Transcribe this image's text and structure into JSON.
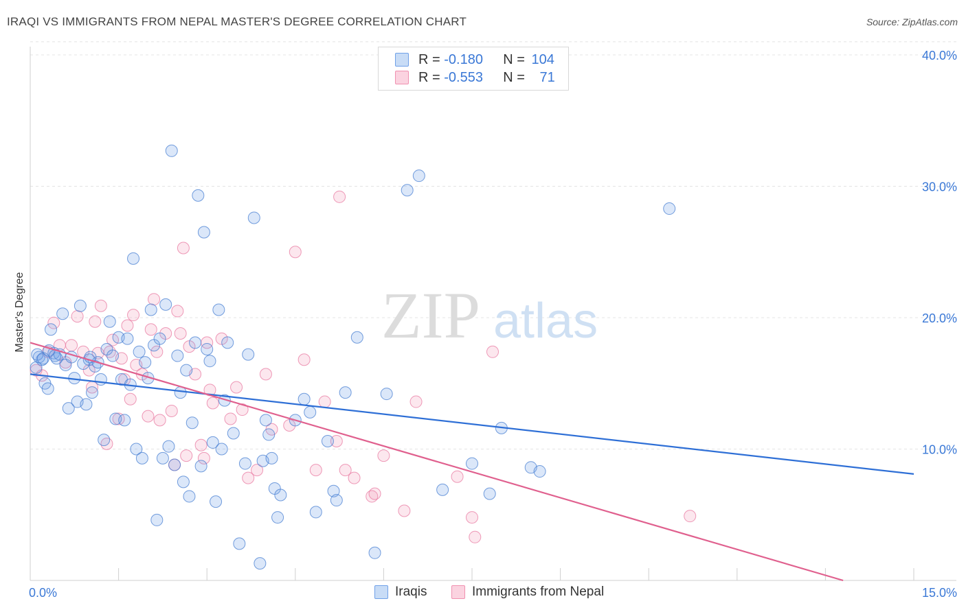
{
  "title": "IRAQI VS IMMIGRANTS FROM NEPAL MASTER'S DEGREE CORRELATION CHART",
  "source": "Source: ZipAtlas.com",
  "watermark": {
    "zip": "ZIP",
    "atlas": "atlas"
  },
  "legend": {
    "rows": [
      {
        "r_label": "R =",
        "r_value": "-0.180",
        "n_label": "N =",
        "n_value": "104",
        "color": "#6fa0e8"
      },
      {
        "r_label": "R =",
        "r_value": "-0.553",
        "n_label": "N =",
        "n_value": "71",
        "color": "#f090b0"
      }
    ]
  },
  "bottom_legend": [
    "Iraqis",
    "Immigrants from Nepal"
  ],
  "colors": {
    "blue": "#6fa0e8",
    "blue_line": "#2e6fd6",
    "pink": "#f090b0",
    "pink_line": "#e0608e",
    "tick_text": "#3a78d6"
  },
  "chart_data": {
    "type": "scatter",
    "xlabel": "",
    "ylabel": "Master's Degree",
    "xlim": [
      0,
      15
    ],
    "ylim": [
      0,
      41
    ],
    "x_tick_labels": [
      "0.0%",
      "15.0%"
    ],
    "y_ticks": [
      10,
      20,
      30,
      40
    ],
    "y_tick_labels": [
      "10.0%",
      "20.0%",
      "30.0%",
      "40.0%"
    ],
    "grid": true,
    "series": [
      {
        "name": "Iraqis",
        "color": "#6fa0e8",
        "trend": {
          "x": [
            0,
            15
          ],
          "y": [
            15.7,
            8.1
          ]
        },
        "points": [
          [
            0.1,
            16.2
          ],
          [
            0.15,
            17.0
          ],
          [
            0.2,
            16.8
          ],
          [
            0.25,
            15.0
          ],
          [
            0.3,
            14.6
          ],
          [
            0.35,
            19.1
          ],
          [
            0.4,
            17.3
          ],
          [
            0.45,
            16.9
          ],
          [
            0.55,
            20.3
          ],
          [
            0.5,
            17.2
          ],
          [
            0.6,
            16.4
          ],
          [
            0.7,
            17.0
          ],
          [
            0.65,
            13.1
          ],
          [
            0.75,
            15.4
          ],
          [
            0.8,
            13.6
          ],
          [
            0.85,
            20.9
          ],
          [
            0.9,
            16.5
          ],
          [
            0.95,
            13.4
          ],
          [
            1.0,
            16.8
          ],
          [
            1.05,
            14.3
          ],
          [
            1.1,
            16.3
          ],
          [
            1.15,
            16.6
          ],
          [
            1.2,
            15.3
          ],
          [
            1.25,
            10.7
          ],
          [
            1.3,
            17.6
          ],
          [
            1.35,
            19.7
          ],
          [
            1.4,
            17.1
          ],
          [
            1.45,
            12.3
          ],
          [
            1.5,
            18.5
          ],
          [
            1.55,
            15.3
          ],
          [
            1.6,
            12.2
          ],
          [
            1.65,
            18.4
          ],
          [
            1.7,
            14.9
          ],
          [
            1.75,
            24.5
          ],
          [
            1.8,
            10.0
          ],
          [
            1.85,
            17.4
          ],
          [
            1.9,
            9.3
          ],
          [
            1.95,
            16.6
          ],
          [
            2.0,
            15.4
          ],
          [
            2.05,
            20.6
          ],
          [
            2.1,
            17.9
          ],
          [
            2.15,
            4.6
          ],
          [
            2.2,
            18.4
          ],
          [
            2.25,
            9.3
          ],
          [
            2.3,
            21.0
          ],
          [
            2.35,
            10.2
          ],
          [
            2.4,
            32.7
          ],
          [
            2.45,
            8.8
          ],
          [
            2.5,
            17.1
          ],
          [
            2.55,
            14.3
          ],
          [
            2.6,
            7.5
          ],
          [
            2.65,
            16.0
          ],
          [
            2.7,
            6.4
          ],
          [
            2.75,
            12.0
          ],
          [
            2.8,
            18.1
          ],
          [
            2.85,
            29.3
          ],
          [
            2.9,
            8.7
          ],
          [
            2.95,
            26.5
          ],
          [
            3.0,
            17.6
          ],
          [
            3.05,
            16.7
          ],
          [
            3.1,
            10.5
          ],
          [
            3.15,
            6.0
          ],
          [
            3.2,
            20.6
          ],
          [
            3.25,
            10.0
          ],
          [
            3.3,
            13.7
          ],
          [
            3.35,
            18.1
          ],
          [
            3.45,
            11.2
          ],
          [
            3.55,
            2.8
          ],
          [
            3.65,
            8.9
          ],
          [
            3.7,
            17.2
          ],
          [
            3.8,
            27.6
          ],
          [
            3.9,
            1.3
          ],
          [
            3.95,
            9.1
          ],
          [
            4.0,
            12.2
          ],
          [
            4.05,
            11.1
          ],
          [
            4.1,
            9.3
          ],
          [
            4.15,
            7.0
          ],
          [
            4.2,
            4.8
          ],
          [
            4.25,
            6.5
          ],
          [
            4.5,
            12.2
          ],
          [
            4.65,
            13.8
          ],
          [
            4.75,
            12.8
          ],
          [
            4.85,
            5.2
          ],
          [
            5.05,
            10.6
          ],
          [
            5.15,
            6.8
          ],
          [
            5.2,
            6.1
          ],
          [
            5.35,
            14.3
          ],
          [
            5.55,
            18.5
          ],
          [
            5.85,
            2.1
          ],
          [
            6.05,
            14.2
          ],
          [
            6.4,
            29.7
          ],
          [
            6.6,
            30.8
          ],
          [
            7.0,
            6.9
          ],
          [
            7.5,
            8.9
          ],
          [
            7.8,
            6.6
          ],
          [
            8.0,
            11.6
          ],
          [
            8.5,
            8.6
          ],
          [
            8.65,
            8.3
          ],
          [
            10.85,
            28.3
          ],
          [
            0.12,
            17.2
          ],
          [
            0.22,
            16.9
          ],
          [
            0.32,
            17.5
          ],
          [
            0.42,
            17.1
          ],
          [
            1.02,
            17.0
          ]
        ]
      },
      {
        "name": "Immigrants from Nepal",
        "color": "#f090b0",
        "trend": {
          "x": [
            0,
            13.8
          ],
          "y": [
            18.1,
            0
          ]
        },
        "points": [
          [
            0.1,
            16.0
          ],
          [
            0.2,
            15.6
          ],
          [
            0.3,
            17.4
          ],
          [
            0.4,
            19.6
          ],
          [
            0.5,
            17.9
          ],
          [
            0.6,
            16.6
          ],
          [
            0.7,
            17.9
          ],
          [
            0.8,
            20.1
          ],
          [
            0.9,
            17.4
          ],
          [
            1.0,
            16.0
          ],
          [
            1.05,
            14.7
          ],
          [
            1.1,
            19.7
          ],
          [
            1.15,
            17.3
          ],
          [
            1.2,
            20.9
          ],
          [
            1.3,
            10.4
          ],
          [
            1.35,
            17.4
          ],
          [
            1.4,
            18.3
          ],
          [
            1.5,
            12.3
          ],
          [
            1.55,
            16.9
          ],
          [
            1.6,
            15.3
          ],
          [
            1.65,
            19.4
          ],
          [
            1.7,
            13.8
          ],
          [
            1.75,
            20.2
          ],
          [
            1.8,
            16.4
          ],
          [
            1.9,
            15.7
          ],
          [
            2.0,
            12.5
          ],
          [
            2.05,
            19.1
          ],
          [
            2.1,
            21.4
          ],
          [
            2.15,
            17.4
          ],
          [
            2.2,
            12.2
          ],
          [
            2.3,
            18.8
          ],
          [
            2.4,
            12.9
          ],
          [
            2.45,
            8.8
          ],
          [
            2.5,
            20.5
          ],
          [
            2.55,
            18.8
          ],
          [
            2.6,
            25.3
          ],
          [
            2.65,
            9.5
          ],
          [
            2.7,
            17.8
          ],
          [
            2.8,
            15.7
          ],
          [
            2.9,
            10.3
          ],
          [
            2.95,
            9.3
          ],
          [
            3.0,
            18.1
          ],
          [
            3.05,
            14.5
          ],
          [
            3.1,
            13.5
          ],
          [
            3.25,
            18.4
          ],
          [
            3.4,
            12.3
          ],
          [
            3.5,
            14.7
          ],
          [
            3.6,
            13.0
          ],
          [
            3.7,
            7.8
          ],
          [
            3.85,
            8.4
          ],
          [
            4.0,
            15.7
          ],
          [
            4.1,
            11.5
          ],
          [
            4.4,
            11.8
          ],
          [
            4.5,
            25.0
          ],
          [
            4.65,
            16.8
          ],
          [
            4.85,
            8.4
          ],
          [
            5.0,
            13.6
          ],
          [
            5.2,
            10.6
          ],
          [
            5.25,
            29.2
          ],
          [
            5.35,
            8.4
          ],
          [
            5.5,
            7.8
          ],
          [
            5.8,
            6.4
          ],
          [
            5.85,
            6.6
          ],
          [
            6.0,
            9.5
          ],
          [
            6.35,
            5.3
          ],
          [
            6.55,
            13.6
          ],
          [
            7.25,
            7.9
          ],
          [
            7.5,
            4.8
          ],
          [
            7.55,
            3.3
          ],
          [
            7.85,
            17.4
          ],
          [
            11.2,
            4.9
          ]
        ]
      }
    ]
  }
}
